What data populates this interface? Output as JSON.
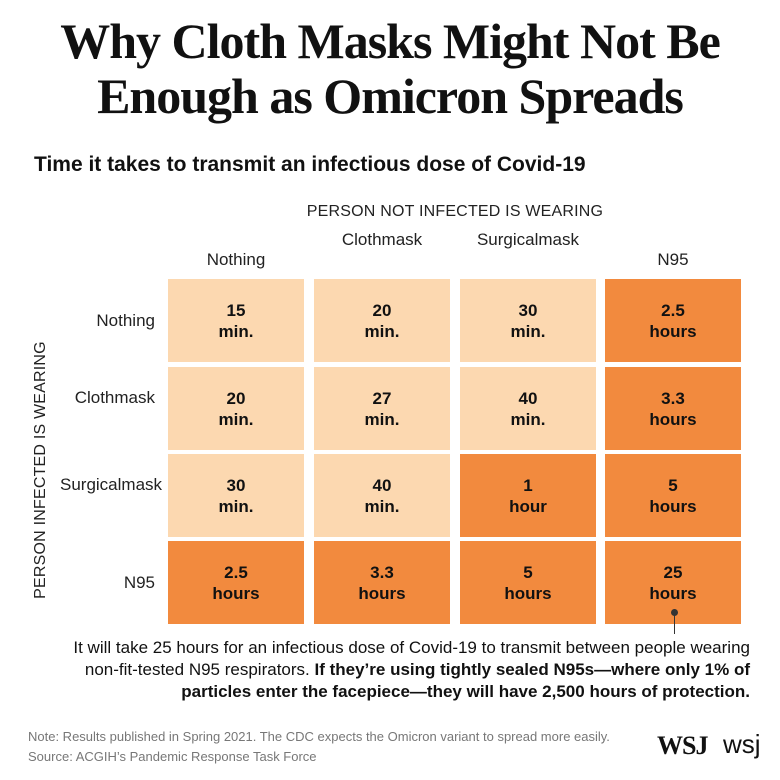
{
  "title": "Why Cloth Masks Might Not Be Enough as Omicron Spreads",
  "chart_data": {
    "type": "heatmap",
    "subtitle": "Time it takes to transmit an infectious dose of Covid-19",
    "x_axis_label": "PERSON NOT INFECTED IS WEARING",
    "y_axis_label": "PERSON INFECTED IS WEARING",
    "columns": [
      "Nothing",
      "Cloth\nmask",
      "Surgical\nmask",
      "N95"
    ],
    "rows": [
      "Nothing",
      "Cloth\nmask",
      "Surgical\nmask",
      "N95"
    ],
    "cells": [
      [
        {
          "value": "15",
          "unit": "min."
        },
        {
          "value": "20",
          "unit": "min."
        },
        {
          "value": "30",
          "unit": "min."
        },
        {
          "value": "2.5",
          "unit": "hours"
        }
      ],
      [
        {
          "value": "20",
          "unit": "min."
        },
        {
          "value": "27",
          "unit": "min."
        },
        {
          "value": "40",
          "unit": "min."
        },
        {
          "value": "3.3",
          "unit": "hours"
        }
      ],
      [
        {
          "value": "30",
          "unit": "min."
        },
        {
          "value": "40",
          "unit": "min."
        },
        {
          "value": "1",
          "unit": "hour"
        },
        {
          "value": "5",
          "unit": "hours"
        }
      ],
      [
        {
          "value": "2.5",
          "unit": "hours"
        },
        {
          "value": "3.3",
          "unit": "hours"
        },
        {
          "value": "5",
          "unit": "hours"
        },
        {
          "value": "25",
          "unit": "hours"
        }
      ]
    ],
    "colors": {
      "under_one_hour": "#fcd8b0",
      "one_hour_or_more": "#f28a3e",
      "page_bg": "#ffffff"
    },
    "annotation": {
      "plain": "It will take 25 hours for an infectious dose of Covid-19 to transmit between people wearing non-fit-tested N95 respirators. ",
      "bold": "If they’re using tightly sealed N95s—where only 1% of particles enter the facepiece—they will have 2,500 hours of protection."
    }
  },
  "footer": {
    "note": "Note: Results published in Spring 2021. The CDC expects the Omicron variant to spread more easily.",
    "source": "Source: ACGIH’s Pandemic Response Task Force"
  },
  "logos": {
    "wsj_serif": "WSJ",
    "wsj_sans": "wsj"
  }
}
